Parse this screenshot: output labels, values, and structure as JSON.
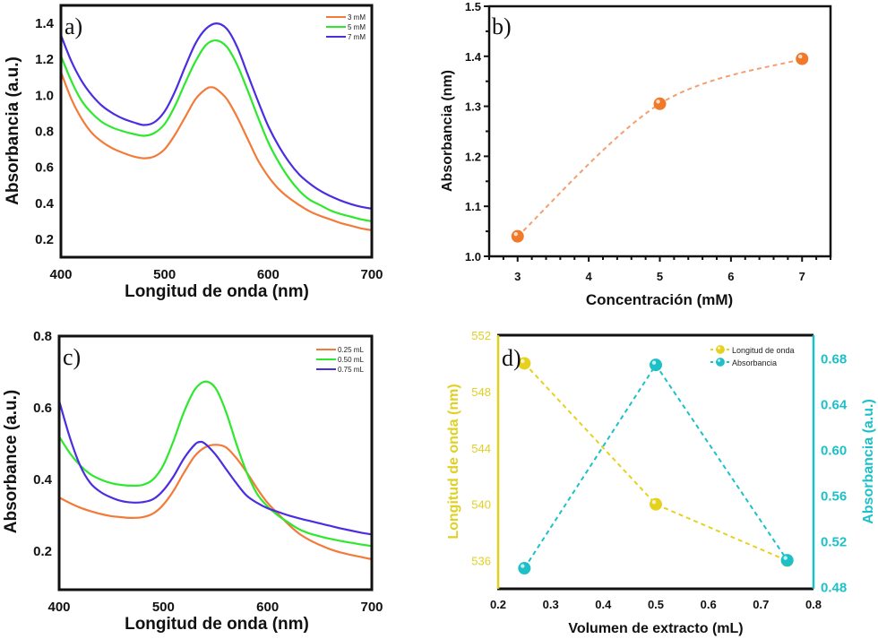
{
  "chart_data": [
    {
      "id": "a",
      "type": "line",
      "panel_label": "a)",
      "xlabel": "Longitud de onda (nm)",
      "ylabel": "Absorbancia (a.u.)",
      "xlim": [
        400,
        700
      ],
      "ylim": [
        0.1,
        1.5
      ],
      "xticks": [
        400,
        500,
        600,
        700
      ],
      "yticks": [
        0.2,
        0.4,
        0.6,
        0.8,
        1.0,
        1.2,
        1.4
      ],
      "ytick_labels": [
        "0.2",
        "0.4",
        "0.6",
        "0.8",
        "1.0",
        "1.2",
        "1.4"
      ],
      "legend_position": "top-right",
      "grid": false,
      "series": [
        {
          "name": "3 mM",
          "color": "#f47a3a",
          "x": [
            400,
            410,
            420,
            430,
            440,
            450,
            460,
            470,
            480,
            490,
            500,
            510,
            520,
            530,
            540,
            545,
            550,
            560,
            570,
            580,
            590,
            600,
            610,
            620,
            630,
            640,
            650,
            660,
            670,
            680,
            690,
            700
          ],
          "y": [
            1.13,
            0.98,
            0.87,
            0.79,
            0.74,
            0.705,
            0.68,
            0.66,
            0.65,
            0.66,
            0.7,
            0.78,
            0.88,
            0.98,
            1.035,
            1.045,
            1.035,
            0.98,
            0.88,
            0.76,
            0.64,
            0.55,
            0.48,
            0.43,
            0.39,
            0.355,
            0.33,
            0.31,
            0.29,
            0.275,
            0.26,
            0.25
          ]
        },
        {
          "name": "5 mM",
          "color": "#2ee82e",
          "x": [
            400,
            410,
            420,
            430,
            440,
            450,
            460,
            470,
            480,
            490,
            500,
            510,
            520,
            530,
            540,
            550,
            560,
            570,
            580,
            590,
            600,
            610,
            620,
            630,
            640,
            650,
            660,
            670,
            680,
            690,
            700
          ],
          "y": [
            1.22,
            1.08,
            0.97,
            0.9,
            0.85,
            0.82,
            0.8,
            0.785,
            0.775,
            0.79,
            0.84,
            0.94,
            1.07,
            1.19,
            1.28,
            1.305,
            1.27,
            1.17,
            1.03,
            0.88,
            0.74,
            0.63,
            0.54,
            0.47,
            0.42,
            0.39,
            0.36,
            0.34,
            0.325,
            0.31,
            0.3
          ]
        },
        {
          "name": "7 mM",
          "color": "#4a2ee0",
          "x": [
            400,
            410,
            420,
            430,
            440,
            450,
            460,
            470,
            480,
            490,
            500,
            510,
            520,
            530,
            540,
            550,
            560,
            570,
            580,
            590,
            600,
            610,
            620,
            630,
            640,
            650,
            660,
            670,
            680,
            690,
            700
          ],
          "y": [
            1.335,
            1.19,
            1.08,
            1.0,
            0.94,
            0.9,
            0.87,
            0.85,
            0.835,
            0.85,
            0.91,
            1.02,
            1.16,
            1.29,
            1.37,
            1.4,
            1.37,
            1.27,
            1.12,
            0.97,
            0.83,
            0.72,
            0.63,
            0.56,
            0.51,
            0.47,
            0.44,
            0.415,
            0.395,
            0.38,
            0.37
          ]
        }
      ]
    },
    {
      "id": "b",
      "type": "scatter",
      "panel_label": "b)",
      "xlabel": "Concentración (mM)",
      "ylabel": "Absorbancia (nm)",
      "xlim": [
        2.6,
        7.4
      ],
      "ylim": [
        1.0,
        1.5
      ],
      "xticks": [
        3,
        4,
        5,
        6,
        7
      ],
      "yticks": [
        1.0,
        1.1,
        1.2,
        1.3,
        1.4,
        1.5
      ],
      "ytick_labels": [
        "1.0",
        "1.1",
        "1.2",
        "1.3",
        "1.4",
        "1.5"
      ],
      "grid": false,
      "series": [
        {
          "name": "Absorbancia",
          "color": "#f07a2a",
          "line_style": "dashed",
          "x": [
            3,
            5,
            7
          ],
          "y": [
            1.04,
            1.305,
            1.395
          ]
        }
      ]
    },
    {
      "id": "c",
      "type": "line",
      "panel_label": "c)",
      "xlabel": "Longitud de onda (nm)",
      "ylabel": "Absorbance (a.u.)",
      "xlim": [
        400,
        700
      ],
      "ylim": [
        0.093,
        0.8
      ],
      "xticks": [
        400,
        500,
        600,
        700
      ],
      "yticks": [
        0.2,
        0.4,
        0.6,
        0.8
      ],
      "ytick_labels": [
        "0.2",
        "0.4",
        "0.6",
        "0.8"
      ],
      "legend_position": "top-right",
      "grid": false,
      "series": [
        {
          "name": "0.25 mL",
          "color": "#f47a3a",
          "x": [
            400,
            410,
            420,
            430,
            440,
            450,
            460,
            470,
            480,
            490,
            500,
            510,
            520,
            530,
            540,
            550,
            560,
            570,
            580,
            590,
            600,
            610,
            620,
            630,
            640,
            650,
            660,
            670,
            680,
            690,
            700
          ],
          "y": [
            0.35,
            0.335,
            0.322,
            0.312,
            0.304,
            0.298,
            0.295,
            0.293,
            0.295,
            0.305,
            0.33,
            0.37,
            0.42,
            0.465,
            0.49,
            0.497,
            0.49,
            0.46,
            0.42,
            0.375,
            0.335,
            0.305,
            0.275,
            0.25,
            0.232,
            0.218,
            0.206,
            0.197,
            0.19,
            0.184,
            0.178
          ]
        },
        {
          "name": "0.50 mL",
          "color": "#2ee82e",
          "x": [
            400,
            410,
            420,
            430,
            440,
            450,
            460,
            470,
            480,
            490,
            500,
            510,
            520,
            530,
            540,
            550,
            560,
            570,
            580,
            590,
            600,
            610,
            620,
            630,
            640,
            650,
            660,
            670,
            680,
            690,
            700
          ],
          "y": [
            0.52,
            0.475,
            0.44,
            0.415,
            0.4,
            0.39,
            0.385,
            0.383,
            0.385,
            0.4,
            0.44,
            0.51,
            0.59,
            0.65,
            0.673,
            0.655,
            0.59,
            0.5,
            0.42,
            0.36,
            0.325,
            0.3,
            0.28,
            0.262,
            0.25,
            0.242,
            0.235,
            0.229,
            0.224,
            0.219,
            0.215
          ]
        },
        {
          "name": "0.75 mL",
          "color": "#4a2ee0",
          "x": [
            400,
            410,
            420,
            430,
            440,
            450,
            460,
            470,
            480,
            490,
            500,
            510,
            520,
            530,
            535,
            540,
            550,
            560,
            570,
            580,
            590,
            600,
            610,
            620,
            630,
            640,
            650,
            660,
            670,
            680,
            690,
            700
          ],
          "y": [
            0.62,
            0.52,
            0.44,
            0.39,
            0.365,
            0.35,
            0.34,
            0.336,
            0.337,
            0.345,
            0.37,
            0.41,
            0.46,
            0.497,
            0.505,
            0.5,
            0.47,
            0.43,
            0.39,
            0.355,
            0.335,
            0.32,
            0.31,
            0.3,
            0.292,
            0.285,
            0.278,
            0.271,
            0.264,
            0.258,
            0.252,
            0.247
          ]
        }
      ]
    },
    {
      "id": "d",
      "type": "scatter",
      "panel_label": "d)",
      "xlabel": "Volumen de extracto (mL)",
      "ylabel": "Longitud de onda (nm)",
      "ylabel_right": "Absorbancia (a.u.)",
      "xlim": [
        0.2,
        0.8
      ],
      "ylim": [
        534,
        552
      ],
      "ylim_right": [
        0.478,
        0.7
      ],
      "xticks": [
        0.2,
        0.3,
        0.4,
        0.5,
        0.6,
        0.7,
        0.8
      ],
      "xtick_labels": [
        "0.2",
        "0.3",
        "0.4",
        "0.5",
        "0.6",
        "0.7",
        "0.8"
      ],
      "yticks": [
        536,
        540,
        544,
        548,
        552
      ],
      "yticks_right": [
        0.48,
        0.52,
        0.56,
        0.6,
        0.64,
        0.68
      ],
      "ytick_labels_right": [
        "0.48",
        "0.52",
        "0.56",
        "0.60",
        "0.64",
        "0.68"
      ],
      "legend_position": "top-right",
      "grid": false,
      "left_axis_color": "#e0d020",
      "right_axis_color": "#1ec0c8",
      "series": [
        {
          "name": "Longitud de onda",
          "axis": "left",
          "color": "#e6d21e",
          "line_style": "dashed",
          "x": [
            0.25,
            0.5,
            0.75
          ],
          "y": [
            550,
            540,
            536
          ]
        },
        {
          "name": "Absorbancia",
          "axis": "right",
          "color": "#1ec0c8",
          "line_style": "dashed",
          "x": [
            0.25,
            0.5,
            0.75
          ],
          "y": [
            0.496,
            0.674,
            0.503
          ]
        }
      ]
    }
  ]
}
